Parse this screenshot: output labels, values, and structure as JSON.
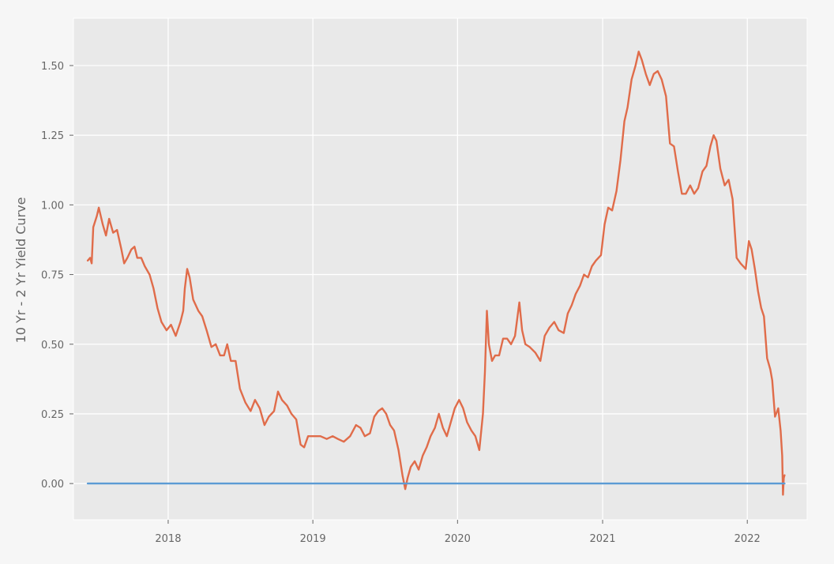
{
  "chart_data": {
    "type": "line",
    "title": "",
    "xlabel": "",
    "ylabel": "10 Yr - 2 Yr Yield Curve",
    "x_ticks": [
      "2018",
      "2019",
      "2020",
      "2021",
      "2022"
    ],
    "y_ticks": [
      "0.00",
      "0.25",
      "0.50",
      "0.75",
      "1.00",
      "1.25",
      "1.50"
    ],
    "xlim": [
      "2017-05-07",
      "2022-06-01"
    ],
    "ylim": [
      -0.13,
      1.67
    ],
    "grid": true,
    "legend": "none",
    "series": [
      {
        "color": "#e06c4a",
        "points": [
          [
            "2017-06-12",
            0.8
          ],
          [
            "2017-06-18",
            0.81
          ],
          [
            "2017-06-22",
            0.79
          ],
          [
            "2017-06-26",
            0.92
          ],
          [
            "2017-07-05",
            0.96
          ],
          [
            "2017-07-10",
            0.99
          ],
          [
            "2017-07-20",
            0.93
          ],
          [
            "2017-07-28",
            0.89
          ],
          [
            "2017-08-05",
            0.95
          ],
          [
            "2017-08-15",
            0.9
          ],
          [
            "2017-08-25",
            0.91
          ],
          [
            "2017-09-05",
            0.84
          ],
          [
            "2017-09-12",
            0.79
          ],
          [
            "2017-09-20",
            0.81
          ],
          [
            "2017-09-30",
            0.84
          ],
          [
            "2017-10-08",
            0.85
          ],
          [
            "2017-10-15",
            0.81
          ],
          [
            "2017-10-25",
            0.81
          ],
          [
            "2017-11-03",
            0.78
          ],
          [
            "2017-11-15",
            0.75
          ],
          [
            "2017-11-25",
            0.7
          ],
          [
            "2017-12-05",
            0.63
          ],
          [
            "2017-12-15",
            0.58
          ],
          [
            "2017-12-28",
            0.55
          ],
          [
            "2018-01-08",
            0.57
          ],
          [
            "2018-01-20",
            0.53
          ],
          [
            "2018-02-01",
            0.58
          ],
          [
            "2018-02-08",
            0.62
          ],
          [
            "2018-02-12",
            0.7
          ],
          [
            "2018-02-18",
            0.77
          ],
          [
            "2018-02-24",
            0.74
          ],
          [
            "2018-03-05",
            0.66
          ],
          [
            "2018-03-18",
            0.62
          ],
          [
            "2018-03-28",
            0.6
          ],
          [
            "2018-04-08",
            0.55
          ],
          [
            "2018-04-20",
            0.49
          ],
          [
            "2018-05-01",
            0.5
          ],
          [
            "2018-05-12",
            0.46
          ],
          [
            "2018-05-22",
            0.46
          ],
          [
            "2018-05-30",
            0.5
          ],
          [
            "2018-06-08",
            0.44
          ],
          [
            "2018-06-20",
            0.44
          ],
          [
            "2018-07-01",
            0.34
          ],
          [
            "2018-07-15",
            0.29
          ],
          [
            "2018-07-28",
            0.26
          ],
          [
            "2018-08-08",
            0.3
          ],
          [
            "2018-08-20",
            0.27
          ],
          [
            "2018-09-01",
            0.21
          ],
          [
            "2018-09-12",
            0.24
          ],
          [
            "2018-09-25",
            0.26
          ],
          [
            "2018-10-05",
            0.33
          ],
          [
            "2018-10-15",
            0.3
          ],
          [
            "2018-10-28",
            0.28
          ],
          [
            "2018-11-08",
            0.25
          ],
          [
            "2018-11-20",
            0.23
          ],
          [
            "2018-12-01",
            0.14
          ],
          [
            "2018-12-10",
            0.13
          ],
          [
            "2018-12-20",
            0.17
          ],
          [
            "2019-01-05",
            0.17
          ],
          [
            "2019-01-20",
            0.17
          ],
          [
            "2019-02-05",
            0.16
          ],
          [
            "2019-02-20",
            0.17
          ],
          [
            "2019-03-05",
            0.16
          ],
          [
            "2019-03-20",
            0.15
          ],
          [
            "2019-04-05",
            0.17
          ],
          [
            "2019-04-20",
            0.21
          ],
          [
            "2019-05-01",
            0.2
          ],
          [
            "2019-05-12",
            0.17
          ],
          [
            "2019-05-25",
            0.18
          ],
          [
            "2019-06-05",
            0.24
          ],
          [
            "2019-06-15",
            0.26
          ],
          [
            "2019-06-25",
            0.27
          ],
          [
            "2019-07-05",
            0.25
          ],
          [
            "2019-07-15",
            0.21
          ],
          [
            "2019-07-25",
            0.19
          ],
          [
            "2019-08-05",
            0.12
          ],
          [
            "2019-08-15",
            0.03
          ],
          [
            "2019-08-22",
            -0.02
          ],
          [
            "2019-08-28",
            0.02
          ],
          [
            "2019-09-05",
            0.06
          ],
          [
            "2019-09-15",
            0.08
          ],
          [
            "2019-09-25",
            0.05
          ],
          [
            "2019-10-05",
            0.1
          ],
          [
            "2019-10-15",
            0.13
          ],
          [
            "2019-10-25",
            0.17
          ],
          [
            "2019-11-05",
            0.2
          ],
          [
            "2019-11-15",
            0.25
          ],
          [
            "2019-11-25",
            0.2
          ],
          [
            "2019-12-05",
            0.17
          ],
          [
            "2019-12-15",
            0.22
          ],
          [
            "2019-12-25",
            0.27
          ],
          [
            "2020-01-05",
            0.3
          ],
          [
            "2020-01-15",
            0.27
          ],
          [
            "2020-01-25",
            0.22
          ],
          [
            "2020-02-05",
            0.19
          ],
          [
            "2020-02-15",
            0.17
          ],
          [
            "2020-02-25",
            0.12
          ],
          [
            "2020-03-05",
            0.25
          ],
          [
            "2020-03-10",
            0.4
          ],
          [
            "2020-03-15",
            0.62
          ],
          [
            "2020-03-20",
            0.5
          ],
          [
            "2020-03-28",
            0.44
          ],
          [
            "2020-04-05",
            0.46
          ],
          [
            "2020-04-15",
            0.46
          ],
          [
            "2020-04-25",
            0.52
          ],
          [
            "2020-05-05",
            0.52
          ],
          [
            "2020-05-15",
            0.5
          ],
          [
            "2020-05-25",
            0.53
          ],
          [
            "2020-06-05",
            0.65
          ],
          [
            "2020-06-12",
            0.55
          ],
          [
            "2020-06-20",
            0.5
          ],
          [
            "2020-07-01",
            0.49
          ],
          [
            "2020-07-15",
            0.47
          ],
          [
            "2020-07-28",
            0.44
          ],
          [
            "2020-08-08",
            0.53
          ],
          [
            "2020-08-20",
            0.56
          ],
          [
            "2020-09-01",
            0.58
          ],
          [
            "2020-09-12",
            0.55
          ],
          [
            "2020-09-25",
            0.54
          ],
          [
            "2020-10-05",
            0.61
          ],
          [
            "2020-10-15",
            0.64
          ],
          [
            "2020-10-25",
            0.68
          ],
          [
            "2020-11-05",
            0.71
          ],
          [
            "2020-11-15",
            0.75
          ],
          [
            "2020-11-25",
            0.74
          ],
          [
            "2020-12-05",
            0.78
          ],
          [
            "2020-12-15",
            0.8
          ],
          [
            "2020-12-28",
            0.82
          ],
          [
            "2021-01-06",
            0.93
          ],
          [
            "2021-01-15",
            0.99
          ],
          [
            "2021-01-25",
            0.98
          ],
          [
            "2021-02-05",
            1.05
          ],
          [
            "2021-02-15",
            1.16
          ],
          [
            "2021-02-25",
            1.3
          ],
          [
            "2021-03-05",
            1.35
          ],
          [
            "2021-03-15",
            1.45
          ],
          [
            "2021-03-25",
            1.5
          ],
          [
            "2021-04-02",
            1.55
          ],
          [
            "2021-04-10",
            1.52
          ],
          [
            "2021-04-20",
            1.47
          ],
          [
            "2021-04-30",
            1.43
          ],
          [
            "2021-05-10",
            1.47
          ],
          [
            "2021-05-20",
            1.48
          ],
          [
            "2021-05-30",
            1.45
          ],
          [
            "2021-06-10",
            1.39
          ],
          [
            "2021-06-20",
            1.22
          ],
          [
            "2021-06-30",
            1.21
          ],
          [
            "2021-07-10",
            1.12
          ],
          [
            "2021-07-20",
            1.04
          ],
          [
            "2021-07-30",
            1.04
          ],
          [
            "2021-08-10",
            1.07
          ],
          [
            "2021-08-20",
            1.04
          ],
          [
            "2021-08-30",
            1.06
          ],
          [
            "2021-09-10",
            1.12
          ],
          [
            "2021-09-20",
            1.14
          ],
          [
            "2021-09-30",
            1.21
          ],
          [
            "2021-10-08",
            1.25
          ],
          [
            "2021-10-15",
            1.23
          ],
          [
            "2021-10-25",
            1.13
          ],
          [
            "2021-11-05",
            1.07
          ],
          [
            "2021-11-15",
            1.09
          ],
          [
            "2021-11-25",
            1.02
          ],
          [
            "2021-12-05",
            0.81
          ],
          [
            "2021-12-15",
            0.79
          ],
          [
            "2021-12-28",
            0.77
          ],
          [
            "2022-01-05",
            0.87
          ],
          [
            "2022-01-12",
            0.84
          ],
          [
            "2022-01-20",
            0.77
          ],
          [
            "2022-01-28",
            0.69
          ],
          [
            "2022-02-05",
            0.63
          ],
          [
            "2022-02-12",
            0.6
          ],
          [
            "2022-02-20",
            0.45
          ],
          [
            "2022-02-28",
            0.41
          ],
          [
            "2022-03-05",
            0.37
          ],
          [
            "2022-03-12",
            0.24
          ],
          [
            "2022-03-20",
            0.27
          ],
          [
            "2022-03-26",
            0.19
          ],
          [
            "2022-03-30",
            0.1
          ],
          [
            "2022-04-01",
            -0.04
          ],
          [
            "2022-04-03",
            0.02
          ],
          [
            "2022-04-05",
            0.03
          ]
        ]
      },
      {
        "color": "#5b9bd5",
        "points": [
          [
            "2017-06-12",
            0.0
          ],
          [
            "2022-04-05",
            0.0
          ]
        ]
      }
    ]
  }
}
